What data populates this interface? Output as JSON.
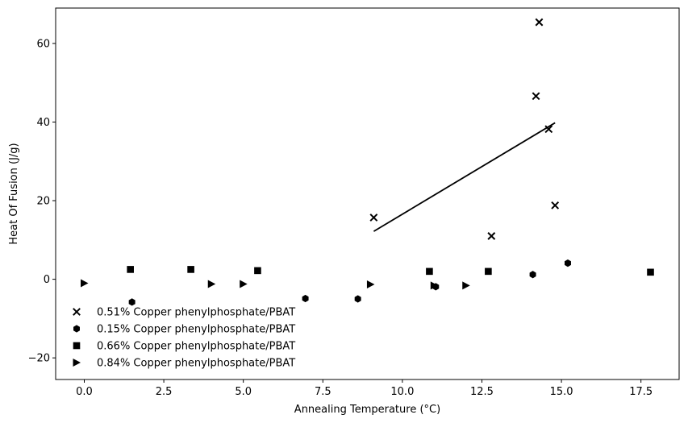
{
  "chart_data": {
    "type": "scatter",
    "xlabel": "Annealing Temperature (°C)",
    "ylabel": "Heat Of Fusion (J/g)",
    "xlim": [
      -0.9,
      18.7
    ],
    "ylim": [
      -25.5,
      69
    ],
    "xticks": [
      0.0,
      2.5,
      5.0,
      7.5,
      10.0,
      12.5,
      15.0,
      17.5
    ],
    "xtick_labels": [
      "0.0",
      "2.5",
      "5.0",
      "7.5",
      "10.0",
      "12.5",
      "15.0",
      "17.5"
    ],
    "yticks": [
      -20,
      0,
      20,
      40,
      60
    ],
    "ytick_labels": [
      "−20",
      "0",
      "20",
      "40",
      "60"
    ],
    "grid": false,
    "legend_position": "bottom-left",
    "series": [
      {
        "name": "0.51% Copper phenylphosphate/PBAT",
        "marker": "x",
        "color": "#000000",
        "points": [
          {
            "x": 9.1,
            "y": 15.7
          },
          {
            "x": 12.8,
            "y": 11.0
          },
          {
            "x": 14.2,
            "y": 46.6
          },
          {
            "x": 14.3,
            "y": 65.4
          },
          {
            "x": 14.6,
            "y": 38.2
          },
          {
            "x": 14.8,
            "y": 18.8
          }
        ]
      },
      {
        "name": "0.15% Copper phenylphosphate/PBAT",
        "marker": "hexagon",
        "color": "#000000",
        "points": [
          {
            "x": 1.5,
            "y": -5.8
          },
          {
            "x": 6.95,
            "y": -4.9
          },
          {
            "x": 8.6,
            "y": -5.0
          },
          {
            "x": 11.05,
            "y": -1.9
          },
          {
            "x": 14.1,
            "y": 1.2
          },
          {
            "x": 15.2,
            "y": 4.1
          }
        ]
      },
      {
        "name": "0.66% Copper phenylphosphate/PBAT",
        "marker": "square",
        "color": "#000000",
        "points": [
          {
            "x": 1.45,
            "y": 2.5
          },
          {
            "x": 3.35,
            "y": 2.5
          },
          {
            "x": 5.45,
            "y": 2.2
          },
          {
            "x": 10.85,
            "y": 2.0
          },
          {
            "x": 12.7,
            "y": 2.0
          },
          {
            "x": 17.8,
            "y": 1.8
          }
        ]
      },
      {
        "name": "0.84% Copper phenylphosphate/PBAT",
        "marker": "triangle-right",
        "color": "#000000",
        "points": [
          {
            "x": 0.0,
            "y": -1.0
          },
          {
            "x": 4.0,
            "y": -1.2
          },
          {
            "x": 5.0,
            "y": -1.2
          },
          {
            "x": 9.0,
            "y": -1.3
          },
          {
            "x": 11.0,
            "y": -1.6
          },
          {
            "x": 12.0,
            "y": -1.6
          }
        ]
      }
    ],
    "trend_line": {
      "color": "#000000",
      "points": [
        {
          "x": 9.1,
          "y": 12.2
        },
        {
          "x": 14.8,
          "y": 39.8
        }
      ]
    }
  }
}
